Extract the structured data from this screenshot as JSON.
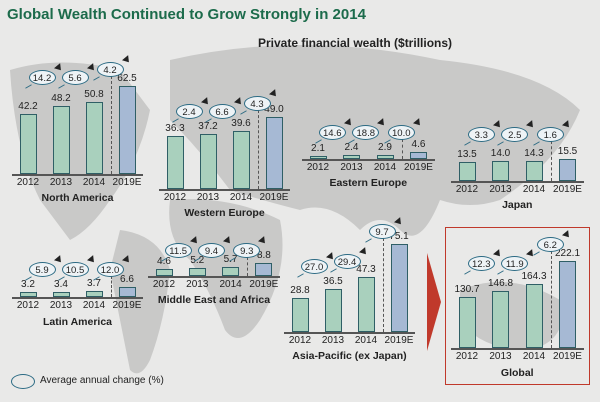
{
  "title": "Global Wealth Continued to Grow Strongly in 2014",
  "legend": {
    "label": "Average annual change (%)"
  },
  "colors": {
    "historical": "#a9d0bd",
    "projection": "#a6b9d4",
    "title": "#1c6b4b",
    "highlight": "#c0392b"
  },
  "chart_data": {
    "type": "bar",
    "title": "Private financial wealth ($trillions)",
    "categories": [
      "2012",
      "2013",
      "2014",
      "2019E"
    ],
    "panels": [
      {
        "name": "North America",
        "values": [
          42.2,
          48.2,
          50.8,
          62.5
        ],
        "changes": [
          "14.2",
          "5.6",
          "4.2"
        ]
      },
      {
        "name": "Western Europe",
        "values": [
          36.3,
          37.2,
          39.6,
          49.0
        ],
        "changes": [
          "2.4",
          "6.6",
          "4.3"
        ]
      },
      {
        "name": "Eastern Europe",
        "values": [
          2.1,
          2.4,
          2.9,
          4.6
        ],
        "changes": [
          "14.6",
          "18.8",
          "10.0"
        ]
      },
      {
        "name": "Japan",
        "values": [
          13.5,
          14.0,
          14.3,
          15.5
        ],
        "changes": [
          "3.3",
          "2.5",
          "1.6"
        ]
      },
      {
        "name": "Latin America",
        "values": [
          3.2,
          3.4,
          3.7,
          6.6
        ],
        "changes": [
          "5.9",
          "10.5",
          "12.0"
        ]
      },
      {
        "name": "Middle East and Africa",
        "values": [
          4.6,
          5.2,
          5.7,
          8.8
        ],
        "changes": [
          "11.5",
          "9.4",
          "9.3"
        ]
      },
      {
        "name": "Asia-Pacific (ex Japan)",
        "values": [
          28.8,
          36.5,
          47.3,
          75.1
        ],
        "changes": [
          "27.0",
          "29.4",
          "9.7"
        ]
      },
      {
        "name": "Global",
        "values": [
          130.7,
          146.8,
          164.3,
          222.1
        ],
        "changes": [
          "12.3",
          "11.9",
          "6.2"
        ]
      }
    ]
  }
}
